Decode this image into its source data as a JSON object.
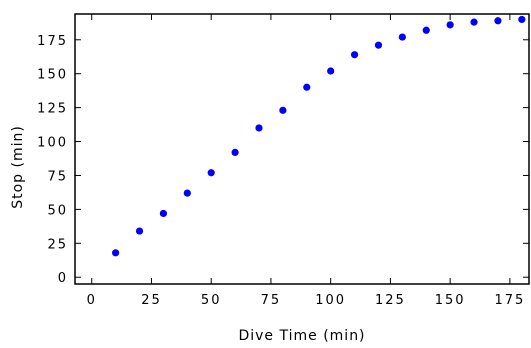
{
  "chart_data": {
    "type": "scatter",
    "title": "",
    "xlabel": "Dive Time (min)",
    "ylabel": "Stop (min)",
    "xlim": [
      -7,
      183
    ],
    "ylim": [
      -5,
      194
    ],
    "x_ticks": [
      0,
      25,
      50,
      75,
      100,
      125,
      150,
      175
    ],
    "y_ticks": [
      0,
      25,
      50,
      75,
      100,
      125,
      150,
      175
    ],
    "grid": false,
    "marker_color": "#0000ff",
    "series": [
      {
        "points": [
          {
            "x": 10,
            "y": 18
          },
          {
            "x": 20,
            "y": 34
          },
          {
            "x": 30,
            "y": 47
          },
          {
            "x": 40,
            "y": 62
          },
          {
            "x": 50,
            "y": 77
          },
          {
            "x": 60,
            "y": 92
          },
          {
            "x": 70,
            "y": 110
          },
          {
            "x": 80,
            "y": 123
          },
          {
            "x": 90,
            "y": 140
          },
          {
            "x": 100,
            "y": 152
          },
          {
            "x": 110,
            "y": 164
          },
          {
            "x": 120,
            "y": 171
          },
          {
            "x": 130,
            "y": 177
          },
          {
            "x": 140,
            "y": 182
          },
          {
            "x": 150,
            "y": 186
          },
          {
            "x": 160,
            "y": 188
          },
          {
            "x": 170,
            "y": 189
          },
          {
            "x": 180,
            "y": 190
          }
        ]
      }
    ]
  }
}
